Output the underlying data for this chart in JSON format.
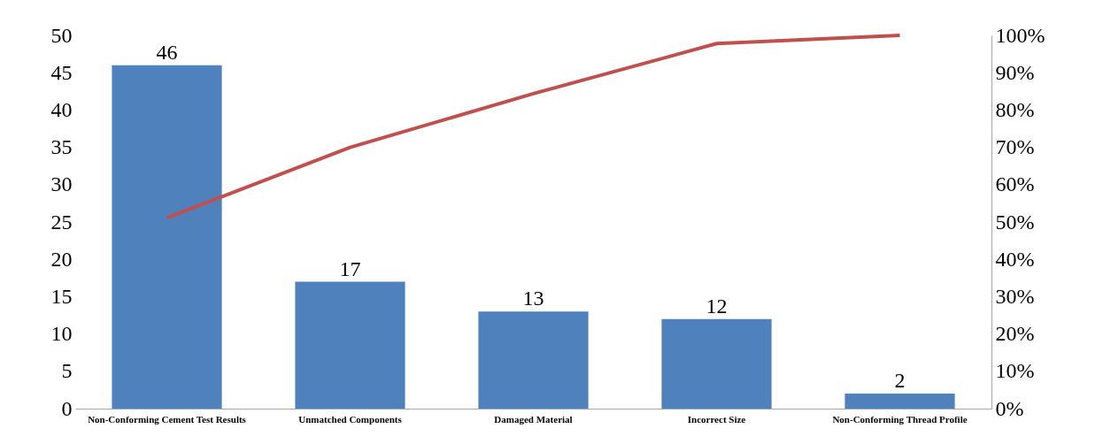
{
  "chart_data": {
    "type": "bar",
    "categories": [
      "Non-Conforming Cement Test Results",
      "Unmatched Components",
      "Damaged Material",
      "Incorrect Size",
      "Non-Conforming Thread Profile"
    ],
    "series": [
      {
        "color": "#4f81bd",
        "values": [
          46,
          17,
          13,
          12,
          2
        ],
        "value_labels": [
          "46",
          "17",
          "13",
          "12",
          "2"
        ]
      },
      {
        "type": "line",
        "axis": "y2",
        "color": "#c0504d",
        "values": [
          51.1,
          70,
          84.4,
          97.8,
          100
        ]
      }
    ],
    "ylim": [
      0,
      50
    ],
    "yticks": [
      0,
      5,
      10,
      15,
      20,
      25,
      30,
      35,
      40,
      45,
      50
    ],
    "y2lim": [
      0,
      100
    ],
    "y2ticks": [
      {
        "value": 0,
        "label": "0%"
      },
      {
        "value": 10,
        "label": "10%"
      },
      {
        "value": 20,
        "label": "20%"
      },
      {
        "value": 30,
        "label": "30%"
      },
      {
        "value": 40,
        "label": "40%"
      },
      {
        "value": 50,
        "label": "50%"
      },
      {
        "value": 60,
        "label": "60%"
      },
      {
        "value": 70,
        "label": "70%"
      },
      {
        "value": 80,
        "label": "80%"
      },
      {
        "value": 90,
        "label": "90%"
      },
      {
        "value": 100,
        "label": "100%"
      }
    ],
    "grid": false
  }
}
